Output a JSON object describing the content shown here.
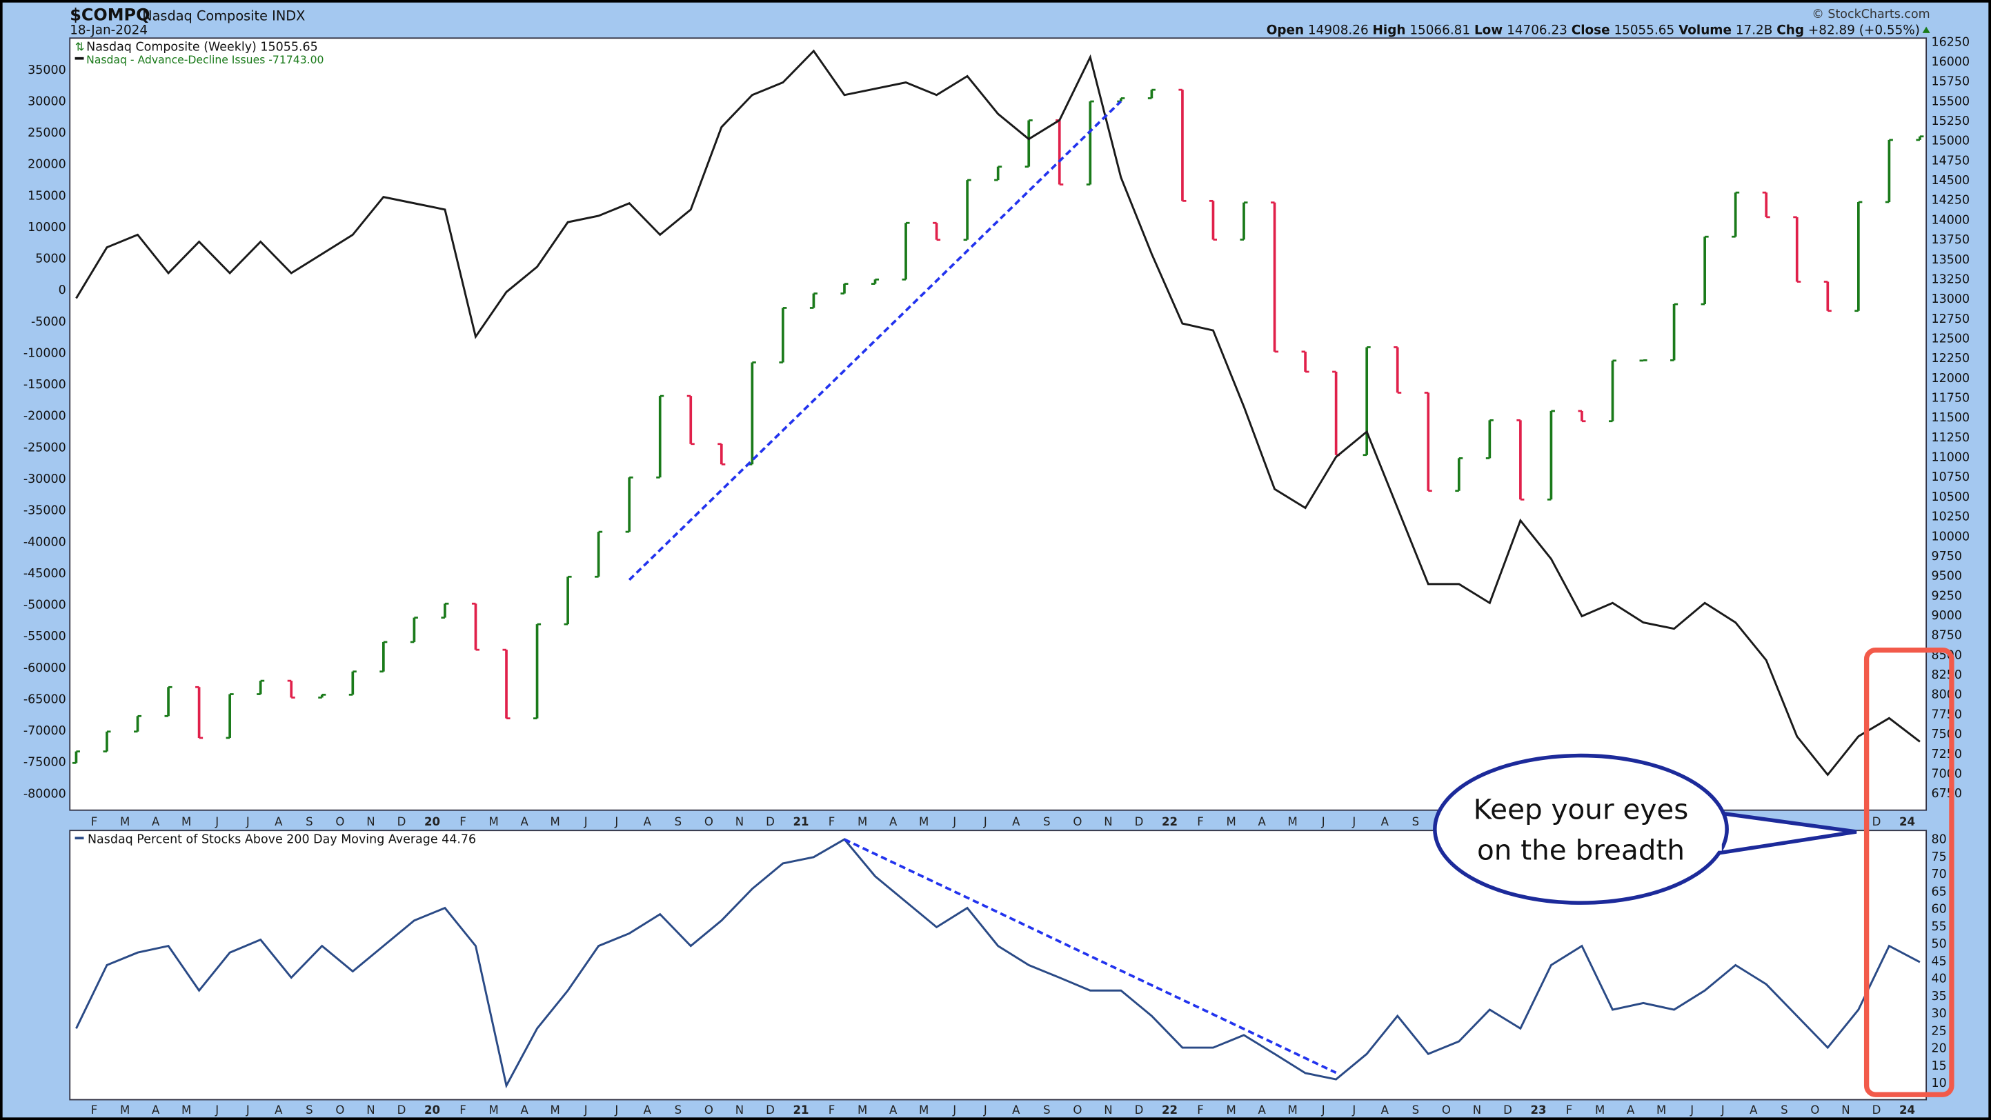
{
  "header": {
    "symbol": "$COMPQ",
    "name": "Nasdaq Composite INDX",
    "date": "18-Jan-2024",
    "copyright": "© StockCharts.com",
    "open_label": "Open",
    "open": "14908.26",
    "high_label": "High",
    "high": "15066.81",
    "low_label": "Low",
    "low": "14706.23",
    "close_label": "Close",
    "close": "15055.65",
    "volume_label": "Volume",
    "volume": "17.2B",
    "chg_label": "Chg",
    "chg": "+82.89 (+0.55%)"
  },
  "legend": {
    "price": "Nasdaq Composite (Weekly) 15055.65",
    "ad": "Nasdaq - Advance-Decline Issues -71743.00",
    "pct": "Nasdaq Percent of Stocks Above 200 Day Moving Average 44.76"
  },
  "callout": {
    "text_line1": "Keep your eyes",
    "text_line2": "on the breadth"
  },
  "colors": {
    "background": "#a4c8f0",
    "up_bar": "#1a7a1a",
    "down_bar": "#e0204a",
    "ad_line": "#1a1a1a",
    "pct_line": "#2a4a86",
    "trendline": "#2233ee",
    "highlight": "#f25a4a",
    "callout_border": "#1c2a9a"
  },
  "chart_data": [
    {
      "type": "bar",
      "title": "Nasdaq Composite (Weekly) 15055.65",
      "x": [
        "2019-01",
        "2019-02",
        "2019-03",
        "2019-04",
        "2019-05",
        "2019-06",
        "2019-07",
        "2019-08",
        "2019-09",
        "2019-10",
        "2019-11",
        "2019-12",
        "2020-01",
        "2020-02",
        "2020-03",
        "2020-04",
        "2020-05",
        "2020-06",
        "2020-07",
        "2020-08",
        "2020-09",
        "2020-10",
        "2020-11",
        "2020-12",
        "2021-01",
        "2021-02",
        "2021-03",
        "2021-04",
        "2021-05",
        "2021-06",
        "2021-07",
        "2021-08",
        "2021-09",
        "2021-10",
        "2021-11",
        "2021-12",
        "2022-01",
        "2022-02",
        "2022-03",
        "2022-04",
        "2022-05",
        "2022-06",
        "2022-07",
        "2022-08",
        "2022-09",
        "2022-10",
        "2022-11",
        "2022-12",
        "2023-01",
        "2023-02",
        "2023-03",
        "2023-04",
        "2023-05",
        "2023-06",
        "2023-07",
        "2023-08",
        "2023-09",
        "2023-10",
        "2023-11",
        "2023-12",
        "2024-01"
      ],
      "close": [
        7282,
        7533,
        7729,
        8095,
        7453,
        8006,
        8175,
        7963,
        7999,
        8292,
        8665,
        8973,
        9150,
        8567,
        7700,
        8890,
        9490,
        10058,
        10745,
        11775,
        11168,
        10911,
        12199,
        12888,
        13070,
        13192,
        13247,
        13962,
        13749,
        14504,
        14673,
        15259,
        14448,
        15498,
        15538,
        15645,
        14240,
        13751,
        14220,
        12335,
        12081,
        11029,
        12391,
        11816,
        10576,
        10988,
        11468,
        10466,
        11585,
        11456,
        12222,
        12226,
        12935,
        13788,
        14346,
        14035,
        13219,
        12851,
        14226,
        15011,
        15055.65
      ],
      "axis": "right",
      "ylim": [
        6750,
        16250
      ],
      "yticks": [
        16250,
        16000,
        15750,
        15500,
        15250,
        15000,
        14750,
        14500,
        14250,
        14000,
        13750,
        13500,
        13250,
        13000,
        12750,
        12500,
        12250,
        12000,
        11750,
        11500,
        11250,
        11000,
        10750,
        10500,
        10250,
        10000,
        9750,
        9500,
        9250,
        9000,
        8750,
        8500,
        8250,
        8000,
        7750,
        7500,
        7250,
        7000,
        6750
      ],
      "trendline": {
        "from": [
          "2020-07",
          9450
        ],
        "to": [
          "2021-11",
          15500
        ]
      }
    },
    {
      "type": "line",
      "title": "Nasdaq - Advance-Decline Issues -71743.00",
      "x_ref": "same as price",
      "values": [
        -1300,
        6800,
        8800,
        2700,
        7700,
        2700,
        7700,
        2700,
        5750,
        8800,
        14800,
        13800,
        12800,
        -7400,
        -300,
        3700,
        10800,
        11800,
        13800,
        8800,
        12800,
        25900,
        31000,
        33000,
        38000,
        31000,
        32000,
        33000,
        31000,
        34000,
        28000,
        24000,
        27000,
        37000,
        17900,
        5750,
        -5300,
        -6400,
        -18500,
        -31600,
        -34600,
        -26500,
        -22500,
        -34600,
        -46700,
        -46700,
        -49700,
        -36600,
        -42700,
        -51800,
        -49700,
        -52800,
        -53800,
        -49700,
        -52800,
        -58800,
        -70900,
        -77000,
        -70900,
        -68000,
        -71743
      ],
      "axis": "left",
      "ylim": [
        -80000,
        35000
      ],
      "yticks": [
        35000,
        30000,
        25000,
        20000,
        15000,
        10000,
        5000,
        0,
        -5000,
        -10000,
        -15000,
        -20000,
        -25000,
        -30000,
        -35000,
        -40000,
        -45000,
        -50000,
        -55000,
        -60000,
        -65000,
        -70000,
        -75000,
        -80000
      ]
    },
    {
      "type": "line",
      "title": "Nasdaq Percent of Stocks Above 200 Day Moving Average 44.76",
      "values": [
        25.7,
        43.9,
        47.5,
        49.4,
        36.6,
        47.5,
        51.2,
        40.3,
        49.4,
        42.1,
        49.4,
        56.7,
        60.3,
        49.4,
        9.3,
        25.7,
        36.6,
        49.4,
        53,
        58.5,
        49.4,
        56.7,
        65.8,
        73.1,
        74.9,
        80,
        69.4,
        62.1,
        54.8,
        60.3,
        49.4,
        43.9,
        40.3,
        36.6,
        36.6,
        29.3,
        20.2,
        20.2,
        23.8,
        18.4,
        12.9,
        11.1,
        18.4,
        29.3,
        18.4,
        22,
        31.1,
        25.7,
        43.9,
        49.4,
        31.1,
        33,
        31.1,
        36.6,
        43.9,
        38.4,
        29.3,
        20.2,
        31.1,
        49.4,
        44.76
      ],
      "axis": "right",
      "ylim": [
        10,
        80
      ],
      "yticks": [
        80,
        75,
        70,
        65,
        60,
        55,
        50,
        45,
        40,
        35,
        30,
        25,
        20,
        15,
        10
      ],
      "trendline": {
        "from": [
          "2021-02",
          80
        ],
        "to": [
          "2022-06",
          13
        ]
      }
    }
  ],
  "month_labels": [
    "J",
    "F",
    "M",
    "A",
    "M",
    "J",
    "J",
    "A",
    "S",
    "O",
    "N",
    "D",
    "20",
    "F",
    "M",
    "A",
    "M",
    "J",
    "J",
    "A",
    "S",
    "O",
    "N",
    "D",
    "21",
    "F",
    "M",
    "A",
    "M",
    "J",
    "J",
    "A",
    "S",
    "O",
    "N",
    "D",
    "22",
    "F",
    "M",
    "A",
    "M",
    "J",
    "J",
    "A",
    "S",
    "O",
    "N",
    "D",
    "23",
    "F",
    "M",
    "A",
    "M",
    "J",
    "J",
    "A",
    "S",
    "O",
    "N",
    "D",
    "24"
  ]
}
